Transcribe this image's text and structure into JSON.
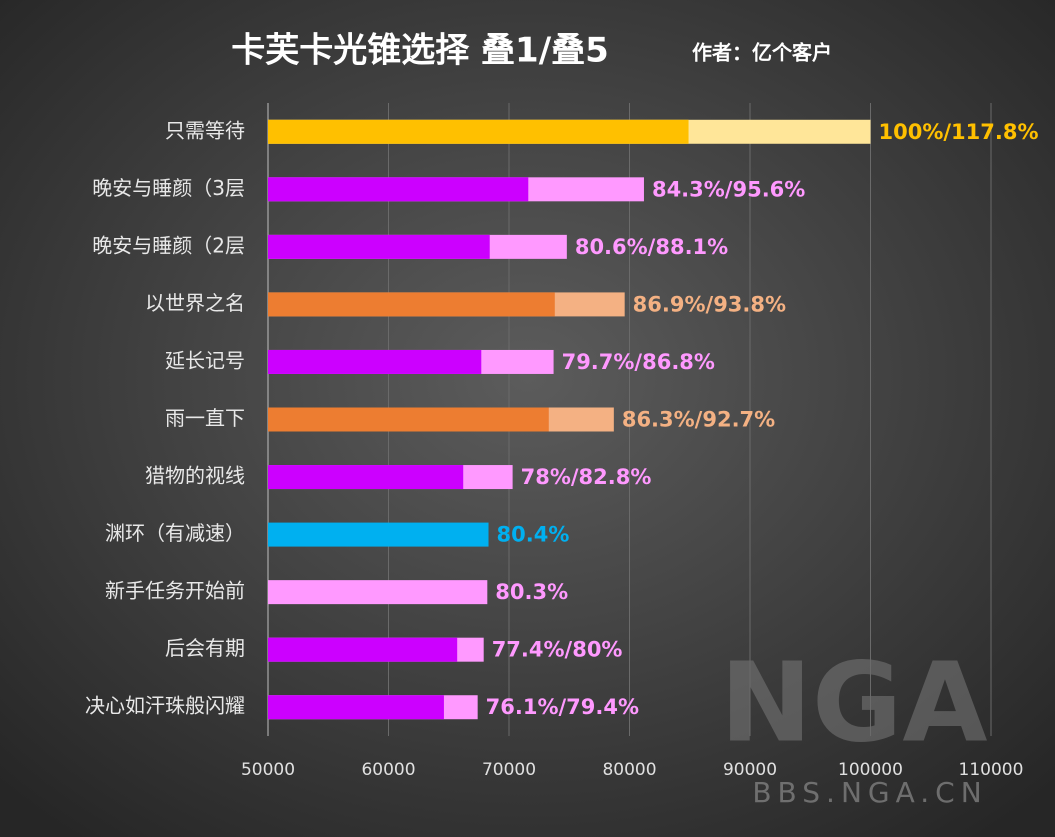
{
  "chart_data": {
    "type": "overlap-bar",
    "title": "卡芙卡光锥选择 叠1/叠5",
    "subtitle": "作者：亿个客户",
    "watermark": "BBS.NGA.CN",
    "categories": [
      "只需等待",
      "晚安与睡颜（3层",
      "晚安与睡颜（2层",
      "以世界之名",
      "延长记号",
      "雨一直下",
      "猎物的视线",
      "渊环（有减速）",
      "新手任务开始前",
      "后会有期",
      "决心如汗珠般闪耀"
    ],
    "series": [
      {
        "values": [
          84900,
          71600,
          68400,
          73800,
          67700,
          73300,
          66200,
          68300,
          68200,
          65700,
          64600
        ],
        "colors": [
          "#ffc000",
          "#cc00ff",
          "#cc00ff",
          "#ed7d31",
          "#cc00ff",
          "#ed7d31",
          "#cc00ff",
          "#00b0f0",
          "#ff99ff",
          "#cc00ff",
          "#cc00ff"
        ]
      },
      {
        "values": [
          100000,
          81200,
          74800,
          79600,
          73700,
          78700,
          70300,
          null,
          null,
          67900,
          67400
        ],
        "colors": [
          "#ffe699",
          "#ff99ff",
          "#ff99ff",
          "#f4b183",
          "#ff99ff",
          "#f4b183",
          "#ff99ff",
          null,
          null,
          "#ff99ff",
          "#ff99ff"
        ]
      }
    ],
    "value_labels": [
      "100%/117.8%",
      "84.3%/95.6%",
      "80.6%/88.1%",
      "86.9%/93.8%",
      "79.7%/86.8%",
      "86.3%/92.7%",
      "78%/82.8%",
      "80.4%",
      "80.3%",
      "77.4%/80%",
      "76.1%/79.4%"
    ],
    "label_colors": [
      "#ffc000",
      "#ff99ff",
      "#ff99ff",
      "#f4b183",
      "#ff99ff",
      "#f4b183",
      "#ff99ff",
      "#00b0f0",
      "#ff99ff",
      "#ff99ff",
      "#ff99ff"
    ],
    "xlim": [
      50000,
      110000
    ],
    "xticks": [
      50000,
      60000,
      70000,
      80000,
      90000,
      100000,
      110000
    ],
    "grid": true
  }
}
